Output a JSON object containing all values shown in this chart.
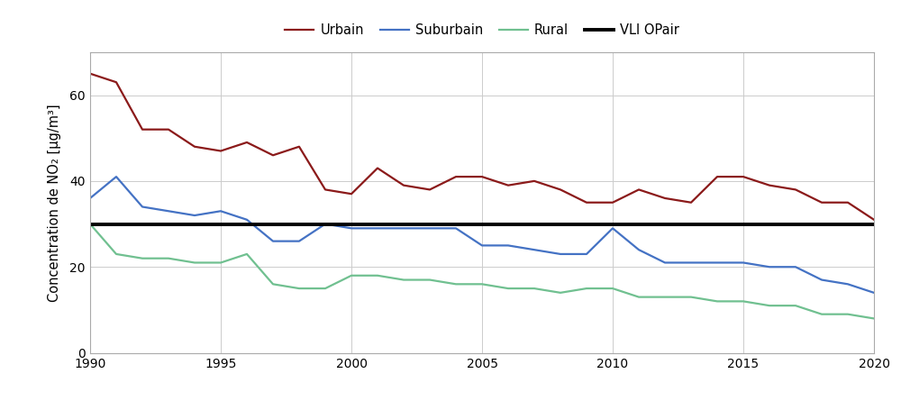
{
  "years": [
    1990,
    1991,
    1992,
    1993,
    1994,
    1995,
    1996,
    1997,
    1998,
    1999,
    2000,
    2001,
    2002,
    2003,
    2004,
    2005,
    2006,
    2007,
    2008,
    2009,
    2010,
    2011,
    2012,
    2013,
    2014,
    2015,
    2016,
    2017,
    2018,
    2019,
    2020
  ],
  "urbain": [
    65,
    63,
    52,
    52,
    48,
    47,
    49,
    46,
    48,
    38,
    37,
    43,
    39,
    38,
    41,
    41,
    39,
    40,
    38,
    35,
    35,
    38,
    36,
    35,
    41,
    41,
    39,
    38,
    35,
    35,
    31
  ],
  "suburbain": [
    36,
    41,
    34,
    33,
    32,
    33,
    31,
    26,
    26,
    30,
    29,
    29,
    29,
    29,
    29,
    25,
    25,
    24,
    23,
    23,
    29,
    24,
    21,
    21,
    21,
    21,
    20,
    20,
    17,
    16,
    14
  ],
  "rural": [
    30,
    23,
    22,
    22,
    21,
    21,
    23,
    16,
    15,
    15,
    18,
    18,
    17,
    17,
    16,
    16,
    15,
    15,
    14,
    15,
    15,
    13,
    13,
    13,
    12,
    12,
    11,
    11,
    9,
    9,
    8
  ],
  "vli_opair": 30,
  "urbain_color": "#8B1A1A",
  "suburbain_color": "#4472C4",
  "rural_color": "#70C090",
  "vli_color": "#000000",
  "ylabel": "Concentration de NO₂ [µg/m³]",
  "ylim": [
    0,
    70
  ],
  "xlim": [
    1990,
    2020
  ],
  "yticks": [
    0,
    20,
    40,
    60
  ],
  "xticks": [
    1990,
    1995,
    2000,
    2005,
    2010,
    2015,
    2020
  ],
  "legend_labels": [
    "Urbain",
    "Suburbain",
    "Rural",
    "VLI OPair"
  ],
  "background_color": "#ffffff",
  "grid_color": "#cccccc",
  "spine_color": "#aaaaaa"
}
